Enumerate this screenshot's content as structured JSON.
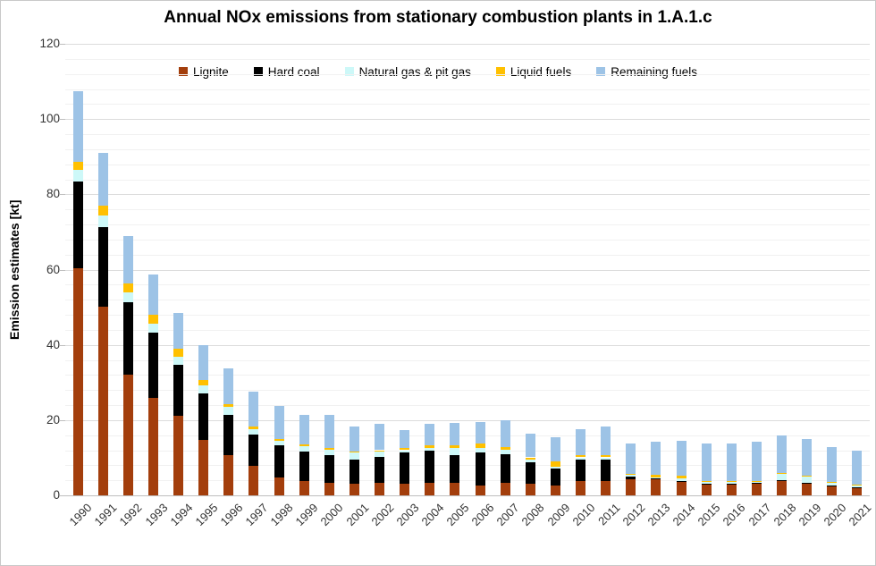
{
  "chart_data": {
    "type": "bar",
    "stacked": true,
    "title": "Annual NOx emissions from stationary combustion plants in 1.A.1.c",
    "ylabel": "Emission estimates [kt]",
    "ylim": [
      0,
      120
    ],
    "y_ticks": [
      0,
      20,
      40,
      60,
      80,
      100,
      120
    ],
    "y_minor_grid_step": 4,
    "grid": true,
    "legend_position": "top-center",
    "categories": [
      "1990",
      "1991",
      "1992",
      "1993",
      "1994",
      "1995",
      "1996",
      "1997",
      "1998",
      "1999",
      "2000",
      "2001",
      "2002",
      "2003",
      "2004",
      "2005",
      "2006",
      "2007",
      "2008",
      "2009",
      "2010",
      "2011",
      "2012",
      "2013",
      "2014",
      "2015",
      "2016",
      "2017",
      "2018",
      "2019",
      "2020",
      "2021"
    ],
    "series": [
      {
        "name": "Lignite",
        "color": "#A33E0C",
        "values": [
          60.3,
          50.1,
          32.1,
          25.9,
          21.2,
          14.8,
          10.6,
          7.9,
          4.8,
          3.7,
          3.4,
          3.2,
          3.4,
          3.2,
          3.4,
          3.3,
          2.6,
          3.3,
          3.0,
          2.7,
          3.8,
          3.8,
          4.2,
          4.3,
          3.8,
          3.0,
          3.0,
          3.2,
          3.9,
          3.3,
          2.5,
          2.1
        ]
      },
      {
        "name": "Hard coal",
        "color": "#000000",
        "values": [
          23.0,
          21.3,
          19.3,
          17.3,
          13.5,
          12.4,
          10.8,
          8.3,
          8.4,
          8.0,
          7.4,
          6.4,
          6.8,
          8.3,
          8.4,
          7.3,
          8.7,
          7.7,
          5.7,
          4.4,
          5.6,
          5.7,
          0.8,
          0.2,
          0.1,
          0.1,
          0.1,
          0.1,
          0.1,
          0.1,
          0.1,
          0.1
        ]
      },
      {
        "name": "Natural gas & pit gas",
        "color": "#CDF8F8",
        "values": [
          3.1,
          3.0,
          2.6,
          2.4,
          2.2,
          2.1,
          2.1,
          1.3,
          1.3,
          1.3,
          1.4,
          1.7,
          1.4,
          0.5,
          0.7,
          2.1,
          1.2,
          1.2,
          0.8,
          0.6,
          0.7,
          0.6,
          0.6,
          0.2,
          0.6,
          0.6,
          0.5,
          0.5,
          1.8,
          1.7,
          0.9,
          0.6
        ]
      },
      {
        "name": "Liquid fuels",
        "color": "#FFC000",
        "values": [
          2.3,
          2.5,
          2.4,
          2.4,
          2.0,
          1.3,
          0.8,
          0.7,
          0.5,
          0.6,
          0.4,
          0.3,
          0.4,
          0.6,
          0.7,
          0.7,
          1.2,
          0.7,
          0.6,
          1.4,
          0.7,
          0.7,
          0.1,
          0.7,
          0.7,
          0.1,
          0.1,
          0.1,
          0.1,
          0.1,
          0.1,
          0.1
        ]
      },
      {
        "name": "Remaining fuels",
        "color": "#9DC3E6",
        "values": [
          18.7,
          14.1,
          12.4,
          10.6,
          9.6,
          9.4,
          9.4,
          9.4,
          8.7,
          7.7,
          8.7,
          6.6,
          7.0,
          4.8,
          5.8,
          5.8,
          5.7,
          7.1,
          6.4,
          6.3,
          6.8,
          7.5,
          8.1,
          8.9,
          9.3,
          10.0,
          10.0,
          10.3,
          10.0,
          9.8,
          9.2,
          9.1
        ]
      }
    ]
  },
  "style_colors": {
    "grid_minor": "#F1F1F1",
    "grid_major": "#DCDCDC",
    "axis_line": "#BFBFBF",
    "tick_label": "#333333"
  }
}
